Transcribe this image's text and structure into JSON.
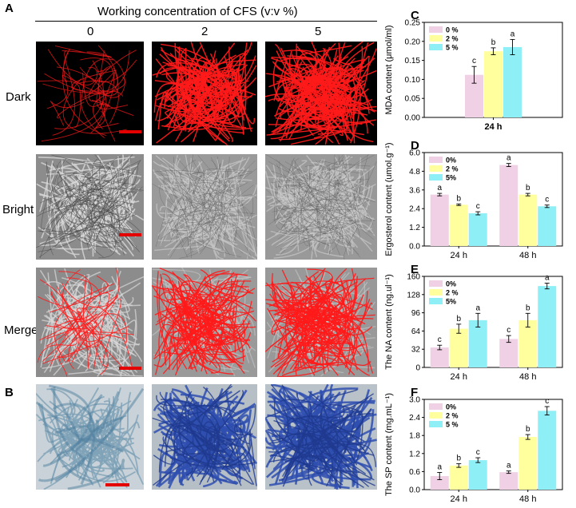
{
  "panel_a": {
    "label": "A",
    "title": "Working concentration of CFS  (v:v %)",
    "columns": [
      "0",
      "2",
      "5"
    ],
    "rows": [
      "Dark",
      "Bright",
      "Merge"
    ]
  },
  "panel_b": {
    "label": "B"
  },
  "colors": {
    "pink": "#f0d0e4",
    "yellow": "#ffff9e",
    "cyan": "#8ef0f6",
    "fluor_red": "#ff1a1a",
    "scale_bar": "#e50000",
    "stain_blue": "#2f4fb0"
  },
  "chart_data": [
    {
      "label": "C",
      "type": "bar",
      "ylabel": "MDA content (μmol/ml)",
      "categories": [
        "24 h"
      ],
      "ylim": [
        0,
        0.25
      ],
      "yticks": [
        "0.00",
        "0.05",
        "0.10",
        "0.15",
        "0.20",
        "0.25"
      ],
      "legend": [
        "0 %",
        "2 %",
        "5 %"
      ],
      "series": [
        {
          "name": "0 %",
          "values": [
            0.112
          ],
          "errors": [
            0.022
          ],
          "letters": [
            "c"
          ]
        },
        {
          "name": "2 %",
          "values": [
            0.174
          ],
          "errors": [
            0.009
          ],
          "letters": [
            "b"
          ]
        },
        {
          "name": "5 %",
          "values": [
            0.185
          ],
          "errors": [
            0.02
          ],
          "letters": [
            "a"
          ]
        }
      ]
    },
    {
      "label": "D",
      "type": "bar",
      "ylabel": "Ergosterol content (umol.g⁻¹)",
      "categories": [
        "24 h",
        "48 h"
      ],
      "ylim": [
        0,
        6.0
      ],
      "yticks": [
        "0.0",
        "1.2",
        "2.4",
        "3.6",
        "4.8",
        "6.0"
      ],
      "legend": [
        "0%",
        "2 %",
        "5%"
      ],
      "series": [
        {
          "name": "0%",
          "values": [
            3.3,
            5.2
          ],
          "errors": [
            0.08,
            0.1
          ],
          "letters": [
            "a",
            "a"
          ]
        },
        {
          "name": "2 %",
          "values": [
            2.65,
            3.3
          ],
          "errors": [
            0.05,
            0.08
          ],
          "letters": [
            "b",
            "b"
          ]
        },
        {
          "name": "5%",
          "values": [
            2.1,
            2.55
          ],
          "errors": [
            0.1,
            0.08
          ],
          "letters": [
            "c",
            "c"
          ]
        }
      ]
    },
    {
      "label": "E",
      "type": "bar",
      "ylabel": "The NA content (ng.ul⁻¹)",
      "categories": [
        "24 h",
        "48 h"
      ],
      "ylim": [
        0,
        160
      ],
      "yticks": [
        "0",
        "32",
        "64",
        "96",
        "128",
        "160"
      ],
      "legend": [
        "0%",
        "2 %",
        "5%"
      ],
      "series": [
        {
          "name": "0%",
          "values": [
            35,
            50
          ],
          "errors": [
            4,
            6
          ],
          "letters": [
            "c",
            "c"
          ]
        },
        {
          "name": "2 %",
          "values": [
            68,
            83
          ],
          "errors": [
            8,
            12
          ],
          "letters": [
            "b",
            "b"
          ]
        },
        {
          "name": "5%",
          "values": [
            83,
            143
          ],
          "errors": [
            12,
            5
          ],
          "letters": [
            "a",
            "a"
          ]
        }
      ]
    },
    {
      "label": "F",
      "type": "bar",
      "ylabel": "The SP content (mg.mL⁻¹)",
      "categories": [
        "24 h",
        "48 h"
      ],
      "ylim": [
        0,
        3.0
      ],
      "yticks": [
        "0.0",
        "0.6",
        "1.2",
        "1.8",
        "2.4",
        "3.0"
      ],
      "legend": [
        "0%",
        "2 %",
        "5 %"
      ],
      "series": [
        {
          "name": "0%",
          "values": [
            0.45,
            0.58
          ],
          "errors": [
            0.12,
            0.04
          ],
          "letters": [
            "a",
            "a"
          ]
        },
        {
          "name": "2 %",
          "values": [
            0.8,
            1.75
          ],
          "errors": [
            0.06,
            0.08
          ],
          "letters": [
            "b",
            "b"
          ]
        },
        {
          "name": "5 %",
          "values": [
            0.98,
            2.62
          ],
          "errors": [
            0.08,
            0.14
          ],
          "letters": [
            "c",
            "c"
          ]
        }
      ]
    }
  ]
}
